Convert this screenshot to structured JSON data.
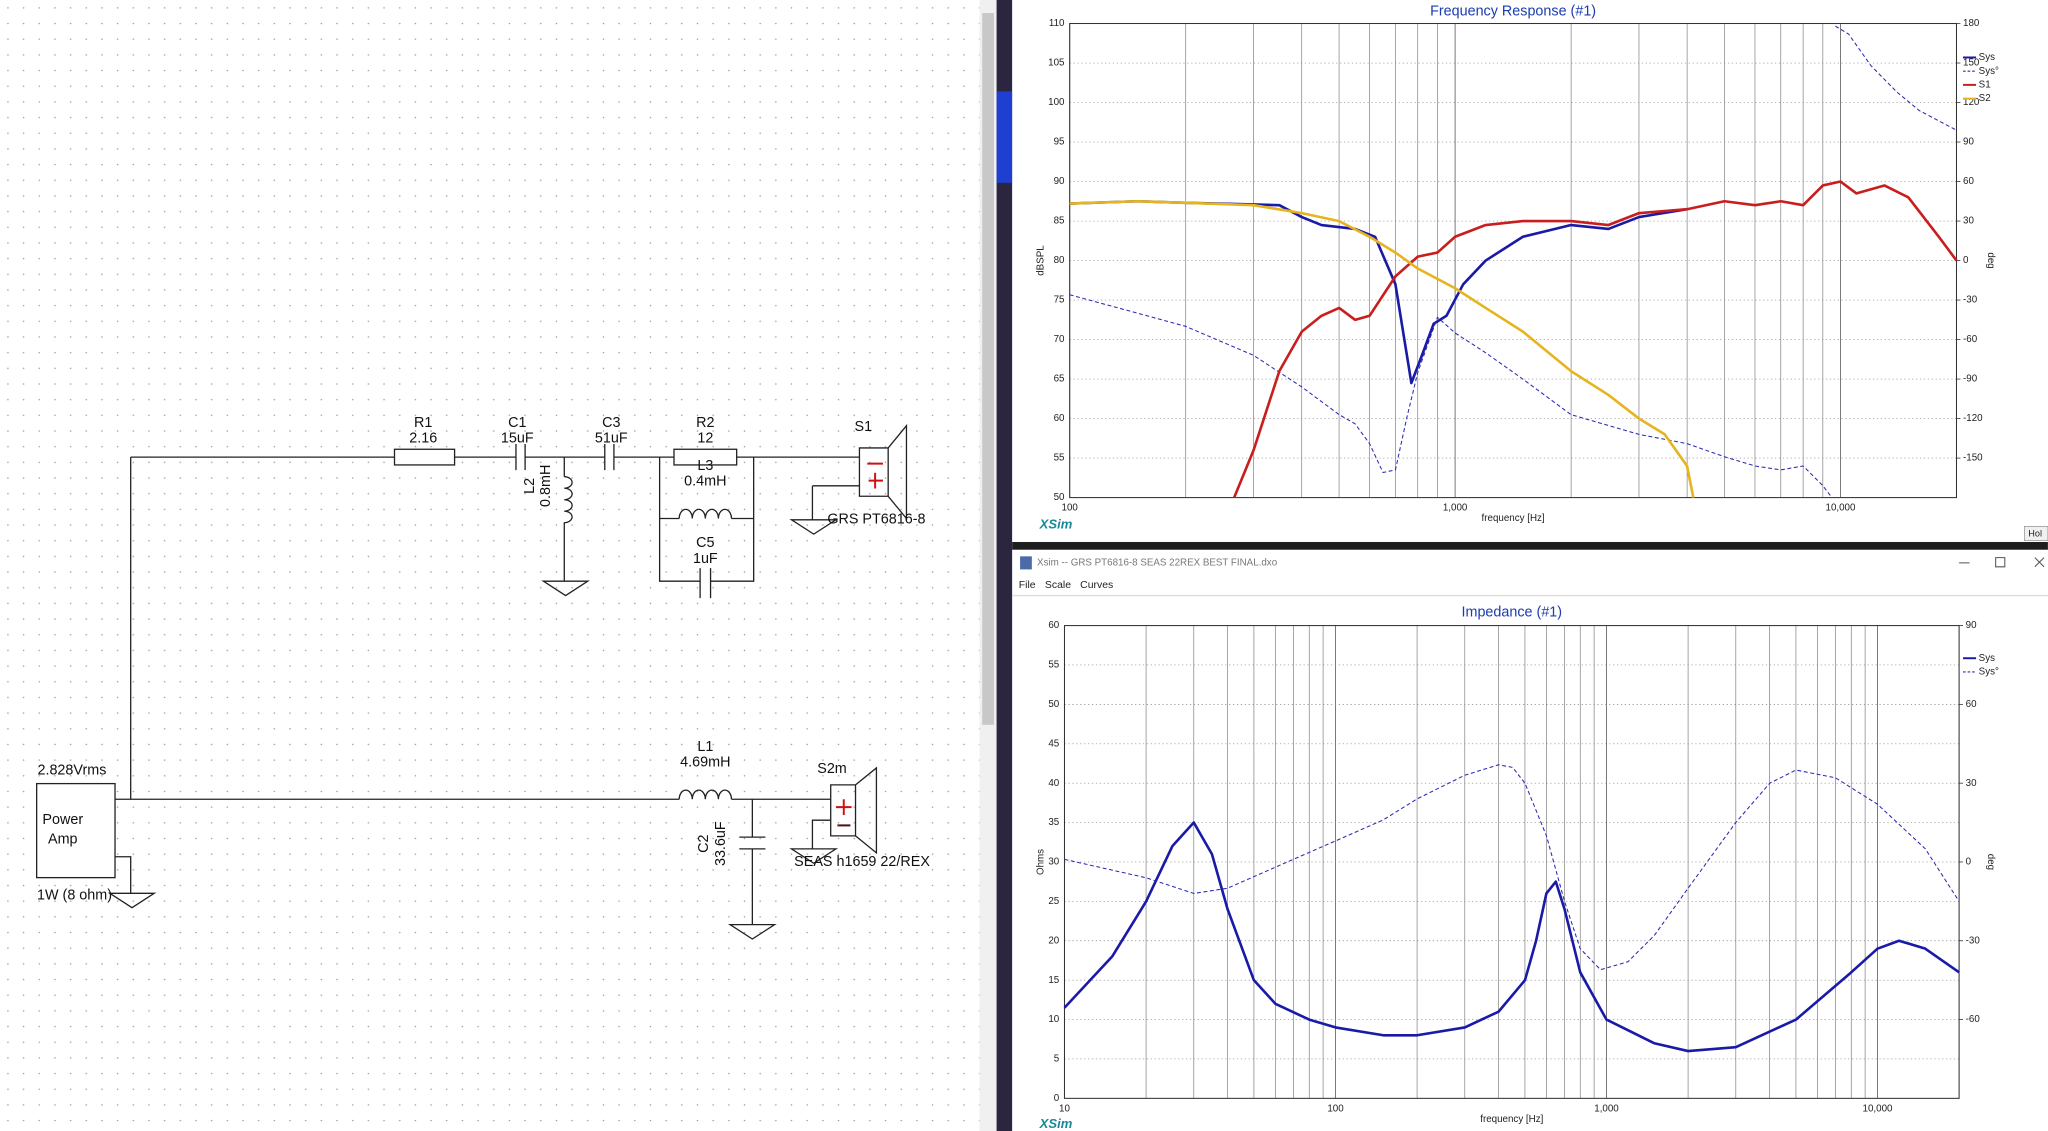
{
  "schematic": {
    "components": [
      {
        "name": "R1",
        "value": "2.16"
      },
      {
        "name": "C1",
        "value": "15uF"
      },
      {
        "name": "C3",
        "value": "51uF"
      },
      {
        "name": "R2",
        "value": "12"
      },
      {
        "name": "L3",
        "value": "0.4mH"
      },
      {
        "name": "C5",
        "value": "1uF"
      },
      {
        "name": "L2",
        "value": "0.8mH"
      },
      {
        "name": "L1",
        "value": "4.69mH"
      },
      {
        "name": "C2",
        "value": "33.6uF"
      }
    ],
    "speakers": [
      {
        "name": "S1",
        "model": "GRS PT6816-8"
      },
      {
        "name": "S2m",
        "model": "SEAS h1659 22/REX"
      }
    ],
    "source": {
      "voltage": "2.828Vrms",
      "label_lines": [
        "Power",
        "Amp"
      ],
      "load": "1W (8 ohm)"
    }
  },
  "window": {
    "title": "Xsim -- GRS PT6816-8 SEAS 22REX BEST FINAL.dxo",
    "menu": [
      "File",
      "Scale",
      "Curves"
    ],
    "button": "Hol",
    "watermark": "XSim"
  },
  "chart_data": [
    {
      "type": "line",
      "title": "Frequency Response (#1)",
      "x_label": "frequency [Hz]",
      "y_label": "dBSPL",
      "y2_label": "deg",
      "xscale": "log",
      "xlim": [
        100,
        20000
      ],
      "xticks": [
        100,
        {
          "value": 1000,
          "label": "1,000"
        },
        {
          "value": 10000,
          "label": "10,000"
        }
      ],
      "xgrid": [
        200,
        300,
        400,
        500,
        600,
        700,
        800,
        900,
        2000,
        3000,
        4000,
        5000,
        6000,
        7000,
        8000,
        9000
      ],
      "ylim": [
        50,
        110
      ],
      "yticks": [
        50,
        55,
        60,
        65,
        70,
        75,
        80,
        85,
        90,
        95,
        100,
        105,
        110
      ],
      "y2lim": [
        -180,
        180
      ],
      "y2ticks": [
        -150,
        -120,
        -90,
        -60,
        -30,
        0,
        30,
        60,
        90,
        120,
        150,
        180
      ],
      "grid": true,
      "legend": "right",
      "series": [
        {
          "name": "Sys",
          "color": "#1a1aa8",
          "width": 2,
          "dashed": false,
          "x": [
            100,
            150,
            200,
            300,
            350,
            400,
            450,
            550,
            620,
            700,
            750,
            770,
            820,
            880,
            950,
            1050,
            1200,
            1500,
            2000,
            2500,
            3000,
            4000
          ],
          "values": [
            87.2,
            87.5,
            87.3,
            87.1,
            87,
            85.5,
            84.5,
            84,
            83,
            77,
            68,
            64.5,
            68,
            72,
            73,
            77,
            80,
            83,
            84.5,
            84,
            85.5,
            86.5
          ]
        },
        {
          "name": "Sys°",
          "color": "#2a2ab0",
          "width": 0.8,
          "dashed": true,
          "axis": "y2",
          "x": [
            100,
            150,
            200,
            300,
            400,
            500,
            550,
            600,
            650,
            700,
            750,
            800,
            900,
            1000,
            1200,
            1500,
            2000,
            3000,
            4000,
            5000,
            6000,
            7000,
            8000,
            9000,
            9500,
            9600,
            9700,
            10500,
            12000,
            14000,
            16000,
            20000
          ],
          "values": [
            -26,
            -40,
            -50,
            -72,
            -96,
            -117,
            -124,
            -139,
            -161,
            -159,
            -119,
            -85,
            -43,
            -55,
            -70,
            -90,
            -117,
            -132,
            -139,
            -149,
            -156,
            -159,
            -156,
            -171,
            -180,
            null,
            178,
            172,
            148,
            128,
            114,
            99
          ]
        },
        {
          "name": "S1",
          "color": "#c81e1e",
          "width": 2,
          "dashed": false,
          "x": [
            267,
            300,
            350,
            400,
            450,
            500,
            550,
            600,
            700,
            800,
            900,
            1000,
            1200,
            1500,
            2000,
            2500,
            3000,
            4000,
            5000,
            6000,
            7000,
            8000,
            9000,
            10000,
            11000,
            13000,
            15000,
            18000,
            20000
          ],
          "values": [
            50,
            56,
            66,
            71,
            73,
            74,
            72.5,
            73,
            78,
            80.5,
            81,
            83,
            84.5,
            85,
            85,
            84.5,
            86,
            86.5,
            87.5,
            87,
            87.5,
            87,
            89.5,
            90,
            88.5,
            89.5,
            88,
            83,
            80
          ]
        },
        {
          "name": "S2",
          "color": "#e6b41e",
          "width": 2,
          "dashed": false,
          "x": [
            100,
            150,
            200,
            300,
            400,
            500,
            600,
            700,
            800,
            1000,
            1200,
            1500,
            2000,
            2500,
            3000,
            3500,
            4000,
            4150
          ],
          "values": [
            87.2,
            87.5,
            87.3,
            87,
            86,
            85,
            83,
            81,
            79,
            76.5,
            74,
            71,
            66,
            63,
            60,
            58,
            54,
            50
          ]
        }
      ]
    },
    {
      "type": "line",
      "title": "Impedance (#1)",
      "x_label": "frequency [Hz]",
      "y_label": "Ohms",
      "y2_label": "deg",
      "xscale": "log",
      "xlim": [
        10,
        20000
      ],
      "xticks": [
        10,
        100,
        {
          "value": 1000,
          "label": "1,000"
        },
        {
          "value": 10000,
          "label": "10,000"
        }
      ],
      "xgrid": [
        20,
        30,
        40,
        50,
        60,
        70,
        80,
        90,
        200,
        300,
        400,
        500,
        600,
        700,
        800,
        900,
        2000,
        3000,
        4000,
        5000,
        6000,
        7000,
        8000,
        9000
      ],
      "ylim": [
        0,
        60
      ],
      "yticks": [
        0,
        5,
        10,
        15,
        20,
        25,
        30,
        35,
        40,
        45,
        50,
        55,
        60
      ],
      "y2lim": [
        -90,
        90
      ],
      "y2ticks": [
        -60,
        -30,
        0,
        30,
        60,
        90
      ],
      "grid": true,
      "legend": "right",
      "series": [
        {
          "name": "Sys",
          "color": "#1a1aa8",
          "width": 2,
          "dashed": false,
          "x": [
            10,
            15,
            20,
            25,
            30,
            35,
            40,
            50,
            60,
            80,
            100,
            150,
            200,
            300,
            400,
            500,
            550,
            600,
            650,
            700,
            800,
            1000,
            1500,
            2000,
            3000,
            5000,
            8000,
            10000,
            12000,
            15000,
            20000
          ],
          "values": [
            11.5,
            18,
            25,
            32,
            35,
            31,
            24,
            15,
            12,
            10,
            9,
            8,
            8,
            9,
            11,
            15,
            20,
            26,
            27.5,
            24,
            16,
            10,
            7,
            6,
            6.5,
            10,
            16,
            19,
            20,
            19,
            16
          ]
        },
        {
          "name": "Sys°",
          "color": "#2a2ab0",
          "width": 0.8,
          "dashed": true,
          "axis": "y2",
          "x": [
            10,
            20,
            30,
            40,
            60,
            100,
            150,
            200,
            300,
            400,
            450,
            500,
            600,
            700,
            800,
            950,
            1200,
            1500,
            2000,
            3000,
            4000,
            5000,
            7000,
            10000,
            15000,
            20000
          ],
          "values": [
            1,
            -6,
            -12,
            -10,
            -2,
            8,
            16,
            24,
            33,
            37,
            36,
            30,
            10,
            -15,
            -33,
            -41,
            -38,
            -28,
            -10,
            15,
            30,
            35,
            32,
            22,
            5,
            -15
          ]
        }
      ]
    }
  ]
}
